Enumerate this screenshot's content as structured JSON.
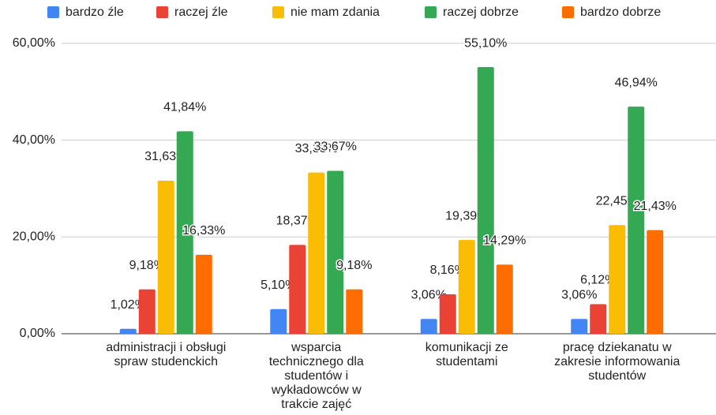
{
  "chart_data": {
    "type": "bar",
    "categories": [
      "administracji i obsługi spraw studenckich",
      "wsparcia technicznego dla studentów i wykładowców w trakcie zajęć",
      "komunikacji ze studentami",
      "pracę dziekanatu w zakresie informowania studentów"
    ],
    "series": [
      {
        "name": "bardzo źle",
        "color": "#4285f4",
        "values": [
          1.02,
          5.1,
          3.06,
          3.06
        ],
        "value_labels": [
          "1,02%",
          "5,10%",
          "3,06%",
          "3,06%"
        ]
      },
      {
        "name": "raczej źle",
        "color": "#ea4335",
        "values": [
          9.18,
          18.37,
          8.16,
          6.12
        ],
        "value_labels": [
          "9,18%",
          "18,37%",
          "8,16%",
          "6,12%"
        ]
      },
      {
        "name": "nie mam zdania",
        "color": "#fbbc04",
        "values": [
          31.63,
          33.33,
          19.39,
          22.45
        ],
        "value_labels": [
          "31,63%",
          "33,33%",
          "19,39%",
          "22,45%"
        ]
      },
      {
        "name": "raczej dobrze",
        "color": "#34a853",
        "values": [
          41.84,
          33.67,
          55.1,
          46.94
        ],
        "value_labels": [
          "41,84%",
          "33,67%",
          "55,10%",
          "46,94%"
        ]
      },
      {
        "name": "bardzo dobrze",
        "color": "#ff6d01",
        "values": [
          16.33,
          9.18,
          14.29,
          21.43
        ],
        "value_labels": [
          "16,33%",
          "9,18%",
          "14,29%",
          "21,43%"
        ]
      }
    ],
    "ylim": [
      0,
      60
    ],
    "yticks": [
      {
        "value": 0,
        "label": "0,00%"
      },
      {
        "value": 20,
        "label": "20,00%"
      },
      {
        "value": 40,
        "label": "40,00%"
      },
      {
        "value": 60,
        "label": "60,00%"
      }
    ],
    "grid": true,
    "legend": "top"
  }
}
